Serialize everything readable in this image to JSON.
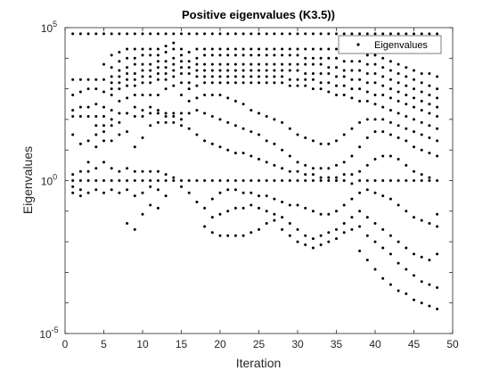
{
  "chart_data": {
    "type": "scatter",
    "title": "Positive eigenvalues (K3.5))",
    "xlabel": "Iteration",
    "ylabel": "Eigenvalues",
    "xlim": [
      0,
      50
    ],
    "ylim_log10": [
      -5,
      5
    ],
    "yscale": "log",
    "grid": false,
    "legend_position": "top-right",
    "marker_color": "#000000",
    "x_ticks": [
      0,
      5,
      10,
      15,
      20,
      25,
      30,
      35,
      40,
      45,
      50
    ],
    "x_tick_labels": [
      "0",
      "5",
      "10",
      "15",
      "20",
      "25",
      "30",
      "35",
      "40",
      "45",
      "50"
    ],
    "y_ticks": [
      {
        "exp": -5,
        "base": "10",
        "power": "-5"
      },
      {
        "exp": 0,
        "base": "10",
        "power": "0"
      },
      {
        "exp": 5,
        "base": "10",
        "power": "5"
      }
    ],
    "series": [
      {
        "name": "Eigenvalues",
        "x": [
          1,
          48
        ],
        "note_values": "per-iteration eigenvalue sets follow (log10 values)",
        "iterations": [
          {
            "x": 1,
            "log10": [
              4.8,
              3.3,
              2.8,
              2.3,
              2.1,
              1.5,
              0.2,
              0.0,
              -0.2,
              -0.4
            ]
          },
          {
            "x": 2,
            "log10": [
              4.8,
              3.3,
              2.9,
              2.4,
              2.1,
              1.2,
              0.3,
              0.0,
              -0.3,
              -0.5
            ]
          },
          {
            "x": 3,
            "log10": [
              4.8,
              3.3,
              3.0,
              2.4,
              2.1,
              1.3,
              0.6,
              0.3,
              0.0,
              -0.4
            ]
          },
          {
            "x": 4,
            "log10": [
              4.8,
              3.3,
              3.0,
              2.5,
              2.1,
              1.8,
              1.5,
              1.1,
              0.4,
              0.0,
              -0.3
            ]
          },
          {
            "x": 5,
            "log10": [
              4.8,
              3.8,
              3.3,
              2.9,
              2.4,
              2.1,
              1.8,
              1.6,
              1.3,
              0.6,
              0.0,
              -0.4
            ]
          },
          {
            "x": 6,
            "log10": [
              4.8,
              4.1,
              3.7,
              3.4,
              3.2,
              3.0,
              2.8,
              2.3,
              2.0,
              1.8,
              1.3,
              0.4,
              0.0,
              -0.3
            ]
          },
          {
            "x": 7,
            "log10": [
              4.8,
              4.2,
              3.9,
              3.6,
              3.4,
              3.2,
              3.0,
              2.6,
              2.2,
              1.9,
              1.5,
              0.3,
              0.0,
              -0.4
            ]
          },
          {
            "x": 8,
            "log10": [
              4.8,
              4.3,
              4.0,
              3.7,
              3.5,
              3.3,
              3.1,
              2.7,
              2.2,
              1.6,
              0.4,
              0.0,
              -0.3,
              -1.4
            ]
          },
          {
            "x": 9,
            "log10": [
              4.8,
              4.3,
              4.0,
              3.8,
              3.5,
              3.3,
              3.1,
              2.8,
              2.4,
              2.1,
              1.1,
              0.3,
              0.0,
              -0.5,
              -1.6
            ]
          },
          {
            "x": 10,
            "log10": [
              4.8,
              4.3,
              4.1,
              3.8,
              3.6,
              3.4,
              3.2,
              2.8,
              2.3,
              2.1,
              1.4,
              0.3,
              0.0,
              -0.4,
              -1.1
            ]
          },
          {
            "x": 11,
            "log10": [
              4.8,
              4.3,
              4.1,
              3.8,
              3.6,
              3.4,
              3.2,
              2.8,
              2.4,
              2.2,
              1.8,
              0.3,
              0.0,
              -0.2,
              -0.8
            ]
          },
          {
            "x": 12,
            "log10": [
              4.8,
              4.3,
              4.1,
              3.9,
              3.7,
              3.5,
              3.3,
              2.8,
              2.3,
              2.2,
              1.9,
              0.3,
              0.0,
              -0.3,
              -0.9
            ]
          },
          {
            "x": 13,
            "log10": [
              4.8,
              4.4,
              4.2,
              3.9,
              3.7,
              3.5,
              3.3,
              3.0,
              2.2,
              2.1,
              1.9,
              0.2,
              0.0,
              -0.5
            ]
          },
          {
            "x": 14,
            "log10": [
              4.8,
              4.5,
              4.3,
              4.0,
              3.8,
              3.6,
              3.4,
              3.1,
              2.2,
              2.1,
              1.9,
              0.1,
              0.0
            ]
          },
          {
            "x": 15,
            "log10": [
              4.8,
              4.3,
              4.1,
              3.9,
              3.7,
              3.5,
              3.2,
              2.8,
              2.2,
              2.0,
              1.8,
              0.0,
              -0.2
            ]
          },
          {
            "x": 16,
            "log10": [
              4.8,
              4.2,
              3.9,
              3.7,
              3.5,
              3.2,
              3.0,
              2.6,
              2.2,
              1.7,
              0.0,
              -0.4
            ]
          },
          {
            "x": 17,
            "log10": [
              4.8,
              4.3,
              4.0,
              3.8,
              3.6,
              3.4,
              3.1,
              2.7,
              2.3,
              1.5,
              0.0,
              -0.7
            ]
          },
          {
            "x": 18,
            "log10": [
              4.8,
              4.3,
              4.1,
              3.8,
              3.6,
              3.4,
              3.2,
              2.8,
              2.2,
              1.3,
              0.0,
              -0.9,
              -1.5
            ]
          },
          {
            "x": 19,
            "log10": [
              4.8,
              4.3,
              4.1,
              3.8,
              3.6,
              3.4,
              3.2,
              2.8,
              2.1,
              1.2,
              0.0,
              -0.6,
              -1.2,
              -1.7
            ]
          },
          {
            "x": 20,
            "log10": [
              4.8,
              4.3,
              4.1,
              3.8,
              3.6,
              3.4,
              3.2,
              2.8,
              2.0,
              1.1,
              0.0,
              -0.4,
              -1.1,
              -1.8
            ]
          },
          {
            "x": 21,
            "log10": [
              4.8,
              4.3,
              4.1,
              3.8,
              3.6,
              3.4,
              3.2,
              2.7,
              1.9,
              1.0,
              0.0,
              -0.3,
              -1.0,
              -1.8
            ]
          },
          {
            "x": 22,
            "log10": [
              4.8,
              4.3,
              4.1,
              3.8,
              3.6,
              3.4,
              3.2,
              2.6,
              1.8,
              0.9,
              0.0,
              -0.3,
              -0.9,
              -1.8
            ]
          },
          {
            "x": 23,
            "log10": [
              4.8,
              4.3,
              4.1,
              3.8,
              3.6,
              3.4,
              3.2,
              2.5,
              1.7,
              0.9,
              0.0,
              -0.4,
              -0.9,
              -1.8
            ]
          },
          {
            "x": 24,
            "log10": [
              4.8,
              4.3,
              4.1,
              3.8,
              3.6,
              3.4,
              3.2,
              2.3,
              1.6,
              0.8,
              0.0,
              -0.4,
              -0.8,
              -1.7
            ]
          },
          {
            "x": 25,
            "log10": [
              4.8,
              4.3,
              4.1,
              3.8,
              3.6,
              3.4,
              3.2,
              2.2,
              1.5,
              0.7,
              0.0,
              -0.5,
              -0.9,
              -1.6
            ]
          },
          {
            "x": 26,
            "log10": [
              4.8,
              4.3,
              4.1,
              3.8,
              3.6,
              3.4,
              3.2,
              2.1,
              1.3,
              0.6,
              0.0,
              -0.5,
              -1.0,
              -1.4
            ]
          },
          {
            "x": 27,
            "log10": [
              4.8,
              4.3,
              4.1,
              3.8,
              3.6,
              3.4,
              3.2,
              2.0,
              1.2,
              0.5,
              0.0,
              -0.6,
              -1.1,
              -1.3
            ]
          },
          {
            "x": 28,
            "log10": [
              4.8,
              4.3,
              4.1,
              3.8,
              3.6,
              3.4,
              3.2,
              1.9,
              1.0,
              0.4,
              0.0,
              -0.7,
              -1.2,
              -1.6
            ]
          },
          {
            "x": 29,
            "log10": [
              4.8,
              4.3,
              4.1,
              3.8,
              3.6,
              3.3,
              3.1,
              1.7,
              0.8,
              0.3,
              0.0,
              -0.8,
              -1.4,
              -1.8
            ]
          },
          {
            "x": 30,
            "log10": [
              4.8,
              4.3,
              4.1,
              3.8,
              3.6,
              3.3,
              3.1,
              1.5,
              0.6,
              0.3,
              0.0,
              -0.8,
              -1.6,
              -2.0
            ]
          },
          {
            "x": 31,
            "log10": [
              4.8,
              4.3,
              4.0,
              3.8,
              3.5,
              3.3,
              3.1,
              1.4,
              0.5,
              0.2,
              0.0,
              -0.9,
              -1.8,
              -2.1
            ]
          },
          {
            "x": 32,
            "log10": [
              4.8,
              4.3,
              4.0,
              3.8,
              3.5,
              3.3,
              3.0,
              1.3,
              0.4,
              0.2,
              0.0,
              -1.0,
              -1.9,
              -2.2
            ]
          },
          {
            "x": 33,
            "log10": [
              4.8,
              4.3,
              4.0,
              3.8,
              3.5,
              3.2,
              3.0,
              1.2,
              0.4,
              0.1,
              0.0,
              -1.1,
              -1.8,
              -2.1
            ]
          },
          {
            "x": 34,
            "log10": [
              4.8,
              4.3,
              4.0,
              3.7,
              3.5,
              3.2,
              2.9,
              1.2,
              0.4,
              0.1,
              0.0,
              -1.1,
              -1.7,
              -2.0
            ]
          },
          {
            "x": 35,
            "log10": [
              4.8,
              4.3,
              4.0,
              3.7,
              3.4,
              3.1,
              2.8,
              1.3,
              0.5,
              0.1,
              0.0,
              -1.0,
              -1.6,
              -1.9
            ]
          },
          {
            "x": 36,
            "log10": [
              4.8,
              4.2,
              3.9,
              3.6,
              3.4,
              3.1,
              2.8,
              1.5,
              0.6,
              0.2,
              0.0,
              -0.8,
              -1.4,
              -1.7
            ]
          },
          {
            "x": 37,
            "log10": [
              4.8,
              4.2,
              3.9,
              3.6,
              3.3,
              3.0,
              2.7,
              1.7,
              0.8,
              0.2,
              -0.1,
              -0.6,
              -1.2,
              -1.6
            ]
          },
          {
            "x": 38,
            "log10": [
              4.8,
              4.2,
              3.9,
              3.6,
              3.3,
              3.0,
              2.6,
              1.9,
              1.1,
              0.3,
              0.0,
              -0.4,
              -1.0,
              -1.5,
              -2.3
            ]
          },
          {
            "x": 39,
            "log10": [
              4.8,
              4.1,
              3.8,
              3.5,
              3.2,
              2.9,
              2.6,
              2.0,
              1.4,
              0.5,
              0.0,
              -0.3,
              -1.2,
              -1.8,
              -2.6
            ]
          },
          {
            "x": 40,
            "log10": [
              4.8,
              4.1,
              3.8,
              3.5,
              3.2,
              2.8,
              2.5,
              2.0,
              1.6,
              0.7,
              0.0,
              -0.4,
              -1.4,
              -2.0,
              -2.9
            ]
          },
          {
            "x": 41,
            "log10": [
              4.8,
              4.0,
              3.7,
              3.4,
              3.1,
              2.8,
              2.4,
              2.0,
              1.6,
              0.8,
              0.0,
              -0.5,
              -1.6,
              -2.2,
              -3.2
            ]
          },
          {
            "x": 42,
            "log10": [
              4.8,
              3.9,
              3.6,
              3.3,
              3.0,
              2.7,
              2.3,
              1.9,
              1.5,
              0.8,
              0.0,
              -0.6,
              -1.8,
              -2.4,
              -3.4
            ]
          },
          {
            "x": 43,
            "log10": [
              4.8,
              3.8,
              3.5,
              3.2,
              2.9,
              2.6,
              2.2,
              1.8,
              1.4,
              0.7,
              0.0,
              -0.8,
              -2.0,
              -2.7,
              -3.6
            ]
          },
          {
            "x": 44,
            "log10": [
              4.8,
              3.7,
              3.4,
              3.1,
              2.8,
              2.5,
              2.1,
              1.7,
              1.3,
              0.5,
              0.0,
              -1.0,
              -2.2,
              -2.9,
              -3.7
            ]
          },
          {
            "x": 45,
            "log10": [
              4.8,
              3.6,
              3.3,
              3.0,
              2.7,
              2.4,
              2.0,
              1.6,
              1.1,
              0.3,
              0.0,
              -1.2,
              -2.4,
              -3.1,
              -3.9
            ]
          },
          {
            "x": 46,
            "log10": [
              4.8,
              3.5,
              3.2,
              2.9,
              2.6,
              2.3,
              1.9,
              1.5,
              1.0,
              0.2,
              0.0,
              -1.3,
              -2.5,
              -3.3,
              -4.0
            ]
          },
          {
            "x": 47,
            "log10": [
              4.8,
              3.5,
              3.1,
              2.8,
              2.5,
              2.2,
              1.8,
              1.4,
              0.9,
              0.1,
              0.0,
              -1.4,
              -2.6,
              -3.4,
              -4.1
            ]
          },
          {
            "x": 48,
            "log10": [
              4.8,
              3.4,
              3.0,
              2.7,
              2.4,
              2.1,
              1.7,
              1.3,
              0.8,
              0.0,
              -1.1,
              -1.5,
              -2.4,
              -3.5,
              -4.2
            ]
          }
        ]
      }
    ]
  }
}
